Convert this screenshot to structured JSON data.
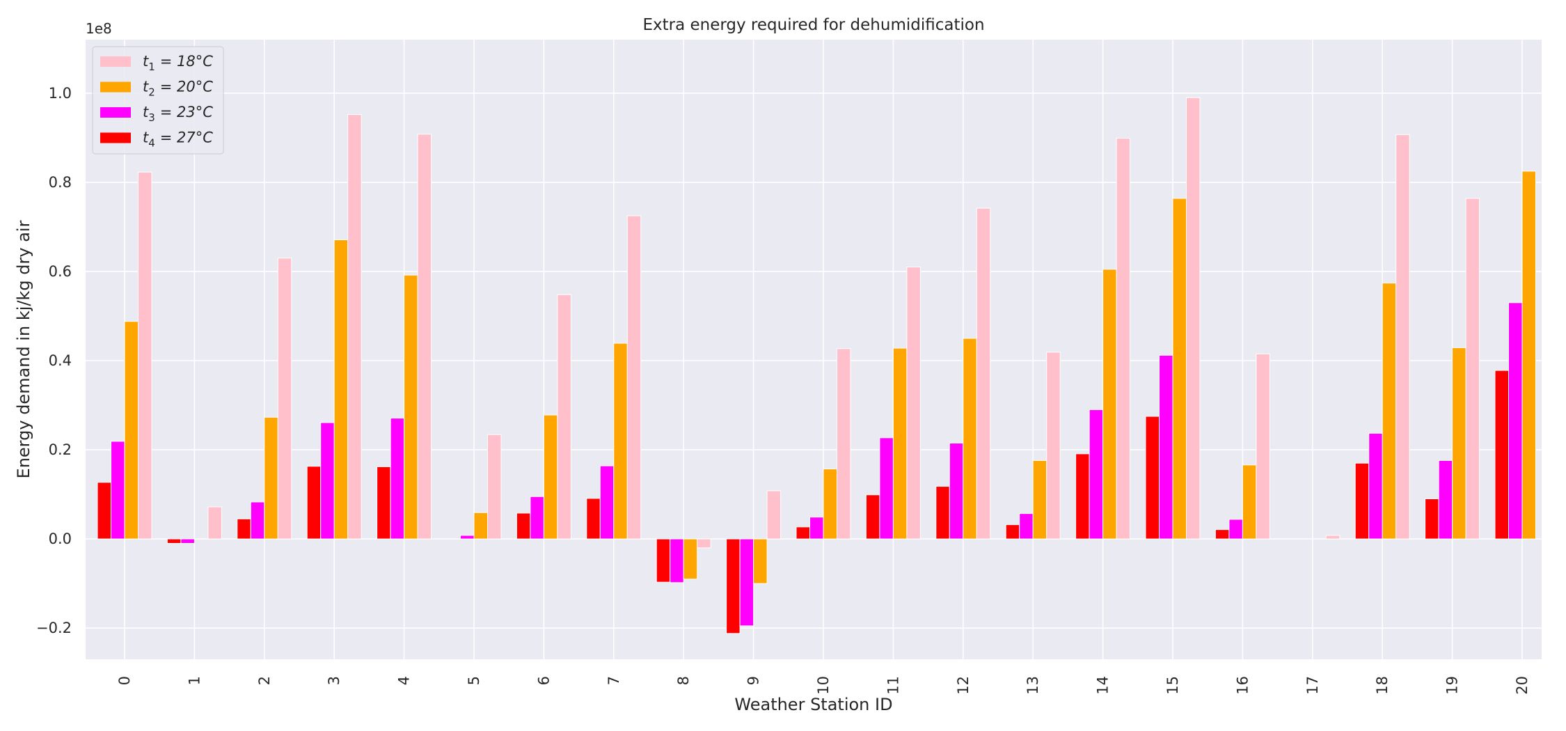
{
  "chart_data": {
    "type": "bar",
    "title": "Extra energy required for dehumidification",
    "xlabel": "Weather Station ID",
    "ylabel": "Energy demand in kj/kg dry air",
    "y_offset_text": "1e8",
    "ylim": [
      -0.27,
      1.12
    ],
    "y_ticks": [
      -0.2,
      0.0,
      0.2,
      0.4,
      0.6,
      0.8,
      1.0
    ],
    "y_tick_labels": [
      "−0.2",
      "0.0",
      "0.2",
      "0.4",
      "0.6",
      "0.8",
      "1.0"
    ],
    "categories": [
      "0",
      "1",
      "2",
      "3",
      "4",
      "5",
      "6",
      "7",
      "8",
      "9",
      "10",
      "11",
      "12",
      "13",
      "14",
      "15",
      "16",
      "17",
      "18",
      "19",
      "20"
    ],
    "grid": true,
    "legend_position": "top-left",
    "series": [
      {
        "name": "t4",
        "legend_label": {
          "var": "t",
          "sub": "4",
          "rest": "= 27°C"
        },
        "color": "#ff0000",
        "values": [
          0.127,
          -0.01,
          0.045,
          0.163,
          0.162,
          0.0,
          0.058,
          0.091,
          -0.097,
          -0.212,
          0.027,
          0.099,
          0.118,
          0.032,
          0.191,
          0.275,
          0.021,
          0.0,
          0.17,
          0.09,
          0.378
        ]
      },
      {
        "name": "t3",
        "legend_label": {
          "var": "t",
          "sub": "3",
          "rest": "= 23°C"
        },
        "color": "#ff00ff",
        "values": [
          0.219,
          -0.01,
          0.083,
          0.261,
          0.271,
          0.008,
          0.095,
          0.164,
          -0.098,
          -0.195,
          0.049,
          0.227,
          0.215,
          0.057,
          0.29,
          0.412,
          0.044,
          0.0,
          0.237,
          0.176,
          0.53
        ]
      },
      {
        "name": "t2",
        "legend_label": {
          "var": "t",
          "sub": "2",
          "rest": "= 20°C"
        },
        "color": "#ffa500",
        "values": [
          0.488,
          0.0,
          0.273,
          0.671,
          0.592,
          0.059,
          0.278,
          0.439,
          -0.09,
          -0.1,
          0.157,
          0.428,
          0.45,
          0.176,
          0.605,
          0.764,
          0.166,
          0.0,
          0.574,
          0.429,
          0.825
        ]
      },
      {
        "name": "t1",
        "legend_label": {
          "var": "t",
          "sub": "1",
          "rest": "= 18°C"
        },
        "color": "#ffc0cb",
        "values": [
          0.823,
          0.072,
          0.63,
          0.952,
          0.908,
          0.234,
          0.548,
          0.725,
          -0.02,
          0.108,
          0.427,
          0.61,
          0.742,
          0.419,
          0.899,
          0.99,
          0.415,
          0.008,
          0.907,
          0.764,
          0.0
        ]
      }
    ],
    "legend_order": [
      "t1",
      "t2",
      "t3",
      "t4"
    ]
  }
}
